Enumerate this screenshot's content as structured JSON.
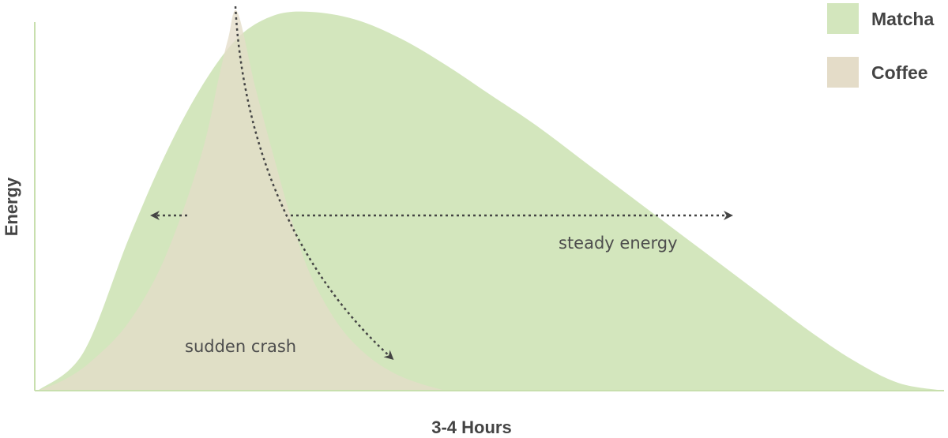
{
  "chart_data": {
    "type": "area",
    "xlabel": "3-4 Hours",
    "ylabel": "Energy",
    "grid": false,
    "legend_position": "top-right",
    "colors": {
      "matcha": "#d3e6bd",
      "coffee": "#e4dcc8",
      "axis": "#c8dfae",
      "arrow": "#444444"
    },
    "series": [
      {
        "name": "Matcha",
        "x": [
          0.0,
          0.05,
          0.1,
          0.14,
          0.18,
          0.22,
          0.26,
          0.3,
          0.35,
          0.4,
          0.45,
          0.5,
          0.55,
          0.6,
          0.65,
          0.7,
          0.75,
          0.8,
          0.85,
          0.9,
          0.95,
          1.0
        ],
        "y": [
          0.0,
          0.1,
          0.4,
          0.62,
          0.8,
          0.93,
          0.99,
          1.0,
          0.98,
          0.93,
          0.86,
          0.78,
          0.7,
          0.61,
          0.52,
          0.43,
          0.34,
          0.25,
          0.16,
          0.08,
          0.02,
          0.0
        ]
      },
      {
        "name": "Coffee",
        "x": [
          0.0,
          0.03,
          0.06,
          0.1,
          0.14,
          0.18,
          0.2,
          0.21,
          0.22,
          0.24,
          0.26,
          0.28,
          0.3,
          0.33,
          0.36,
          0.39,
          0.42,
          0.45
        ],
        "y": [
          0.0,
          0.03,
          0.08,
          0.18,
          0.35,
          0.62,
          0.83,
          0.93,
          1.0,
          0.8,
          0.62,
          0.45,
          0.31,
          0.18,
          0.1,
          0.05,
          0.02,
          0.0
        ]
      }
    ],
    "annotations": [
      {
        "text": "sudden crash",
        "x": 0.23,
        "y": 0.12
      },
      {
        "text": "steady energy",
        "x": 0.65,
        "y": 0.4
      }
    ]
  }
}
